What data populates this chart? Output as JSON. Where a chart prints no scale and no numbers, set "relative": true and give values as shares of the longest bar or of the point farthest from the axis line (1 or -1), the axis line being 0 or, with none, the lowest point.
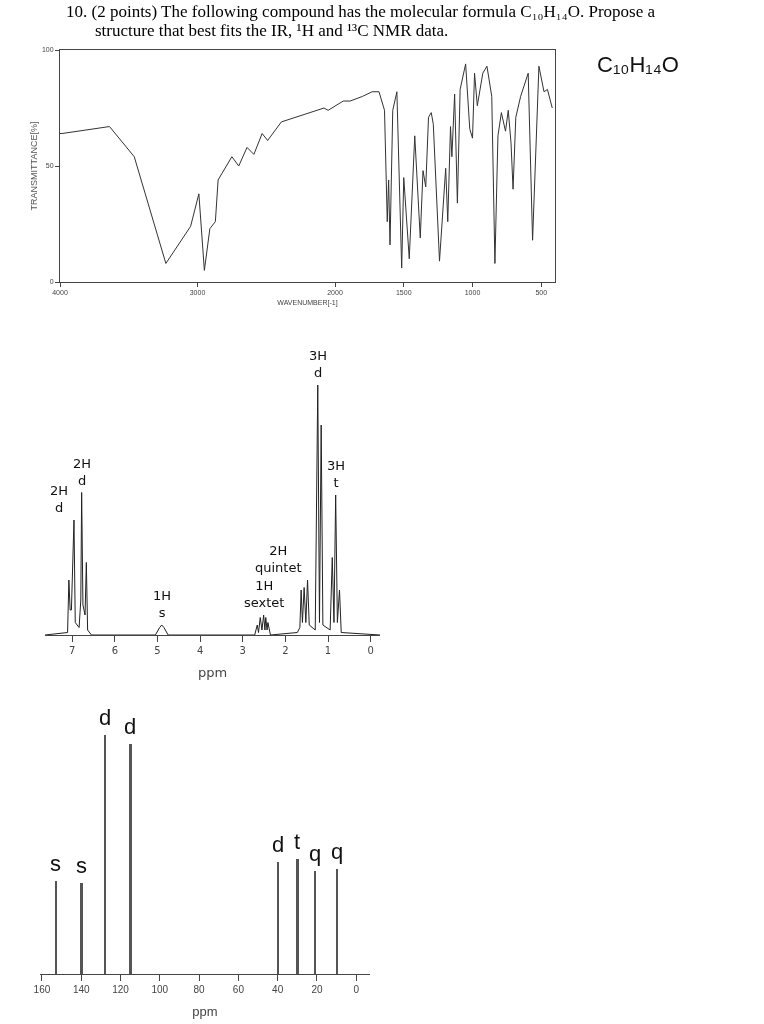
{
  "chart_data": [
    {
      "type": "line",
      "title": "10. (2 points) The following compound has the molecular formula C₁₀H₁₄O. Propose a structure that best fits the IR, ¹H and ¹³C NMR data.",
      "xlabel": "WAVENUMBER[-1]",
      "ylabel": "TRANSMITTANCE[%]",
      "annotations": [
        "C₁₀H₁₄O"
      ],
      "xlim": [
        4000,
        400
      ],
      "xticks": [
        4000,
        3000,
        2000,
        1500,
        1000,
        500
      ],
      "ylim": [
        0,
        100
      ],
      "yticks": [
        0,
        50,
        100
      ],
      "grid": false,
      "marker": "none",
      "line_style": "solid",
      "series": [
        {
          "color": "#333333",
          "x": [
            4000,
            3985,
            3640,
            3460,
            3230,
            3050,
            2990,
            2950,
            2910,
            2870,
            2850,
            2750,
            2700,
            2640,
            2590,
            2530,
            2490,
            2390,
            2080,
            2050,
            1940,
            1890,
            1800,
            1730,
            1680,
            1640,
            1620,
            1610,
            1600,
            1580,
            1550,
            1515,
            1500,
            1460,
            1420,
            1380,
            1360,
            1340,
            1320,
            1300,
            1285,
            1240,
            1195,
            1180,
            1160,
            1150,
            1130,
            1110,
            1090,
            1050,
            1020,
            1000,
            985,
            965,
            925,
            895,
            860,
            837,
            815,
            790,
            760,
            740,
            720,
            705,
            685,
            650,
            595,
            563,
            517,
            480,
            455,
            420
          ],
          "values": [
            64,
            64,
            67,
            54,
            8,
            24,
            38,
            5,
            23,
            26,
            44,
            54,
            50,
            58,
            55,
            64,
            61,
            69,
            75,
            74,
            78,
            78,
            80,
            82,
            82,
            74,
            26,
            44,
            16,
            74,
            82,
            6,
            45,
            10,
            63,
            19,
            48,
            41,
            71,
            73,
            68,
            9,
            49,
            26,
            67,
            54,
            81,
            34,
            83,
            94,
            66,
            62,
            90,
            76,
            90,
            93,
            80,
            8,
            63,
            73,
            65,
            74,
            60,
            40,
            71,
            80,
            90,
            18,
            93,
            82,
            83,
            75
          ]
        }
      ]
    },
    {
      "type": "line",
      "relative": true,
      "xlabel": "ppm",
      "xlim": [
        7.64,
        -0.22
      ],
      "xticks": [
        7,
        6,
        5,
        4,
        3,
        2,
        1,
        0
      ],
      "grid": false,
      "marker": "none",
      "line_style": "solid",
      "annotations": [
        {
          "text": "2H\nd",
          "x": 6.96,
          "y": 0.46
        },
        {
          "text": "2H\nd",
          "x": 6.78,
          "y": 0.57
        },
        {
          "text": "1H\ns",
          "x": 4.9,
          "y": 0.04
        },
        {
          "text": "1H\nsextet",
          "x": 2.51,
          "y": 0.08
        },
        {
          "text": "3H\nd",
          "x": 1.24,
          "y": 1.0
        },
        {
          "text": "2H\nquintet",
          "x": 1.48,
          "y": 0.22
        },
        {
          "text": "3H\nt",
          "x": 0.82,
          "y": 0.56
        }
      ],
      "series": [
        {
          "color": "#222222",
          "x": [
            7.64,
            7.11,
            7.08,
            7.05,
            7.02,
            6.96,
            6.93,
            6.84,
            6.8,
            6.78,
            6.75,
            6.7,
            6.67,
            6.64,
            6.55,
            5.05,
            4.95,
            4.9,
            4.85,
            4.75,
            2.72,
            2.66,
            2.63,
            2.59,
            2.55,
            2.51,
            2.48,
            2.46,
            2.43,
            2.41,
            2.35,
            1.72,
            1.66,
            1.63,
            1.6,
            1.56,
            1.52,
            1.48,
            1.44,
            1.3,
            1.24,
            1.2,
            1.16,
            1.12,
            0.95,
            0.9,
            0.86,
            0.82,
            0.78,
            0.73,
            0.69,
            -0.22
          ],
          "values": [
            0,
            0.01,
            0.22,
            0.1,
            0.1,
            0.46,
            0.05,
            0.03,
            0.14,
            0.57,
            0.12,
            0.08,
            0.29,
            0.02,
            0,
            0,
            0.03,
            0.04,
            0.03,
            0,
            0,
            0.04,
            0.01,
            0.07,
            0.02,
            0.08,
            0.02,
            0.07,
            0.02,
            0.05,
            0,
            0.01,
            0.03,
            0.18,
            0.05,
            0.19,
            0.05,
            0.22,
            0.04,
            0.02,
            1.0,
            0.05,
            0.84,
            0.04,
            0.02,
            0.31,
            0.05,
            0.56,
            0.05,
            0.18,
            0.01,
            0
          ]
        }
      ]
    },
    {
      "type": "bar",
      "relative": true,
      "xlabel": "ppm",
      "xlim": [
        161,
        -7
      ],
      "xticks": [
        160,
        140,
        120,
        100,
        80,
        60,
        40,
        20,
        0
      ],
      "grid": false,
      "x": [
        153,
        140,
        128,
        115,
        40,
        30,
        21,
        10
      ],
      "values": [
        0.39,
        0.38,
        1.0,
        0.96,
        0.47,
        0.48,
        0.43,
        0.44
      ],
      "color": "#555555",
      "annotations": [
        {
          "text": "s",
          "x": 153,
          "y": 0.39
        },
        {
          "text": "s",
          "x": 140,
          "y": 0.38
        },
        {
          "text": "d",
          "x": 128,
          "y": 1.0
        },
        {
          "text": "d",
          "x": 115,
          "y": 0.96
        },
        {
          "text": "d",
          "x": 40,
          "y": 0.47
        },
        {
          "text": "t",
          "x": 30,
          "y": 0.48
        },
        {
          "text": "q",
          "x": 21,
          "y": 0.43
        },
        {
          "text": "q",
          "x": 10,
          "y": 0.44
        }
      ]
    }
  ]
}
